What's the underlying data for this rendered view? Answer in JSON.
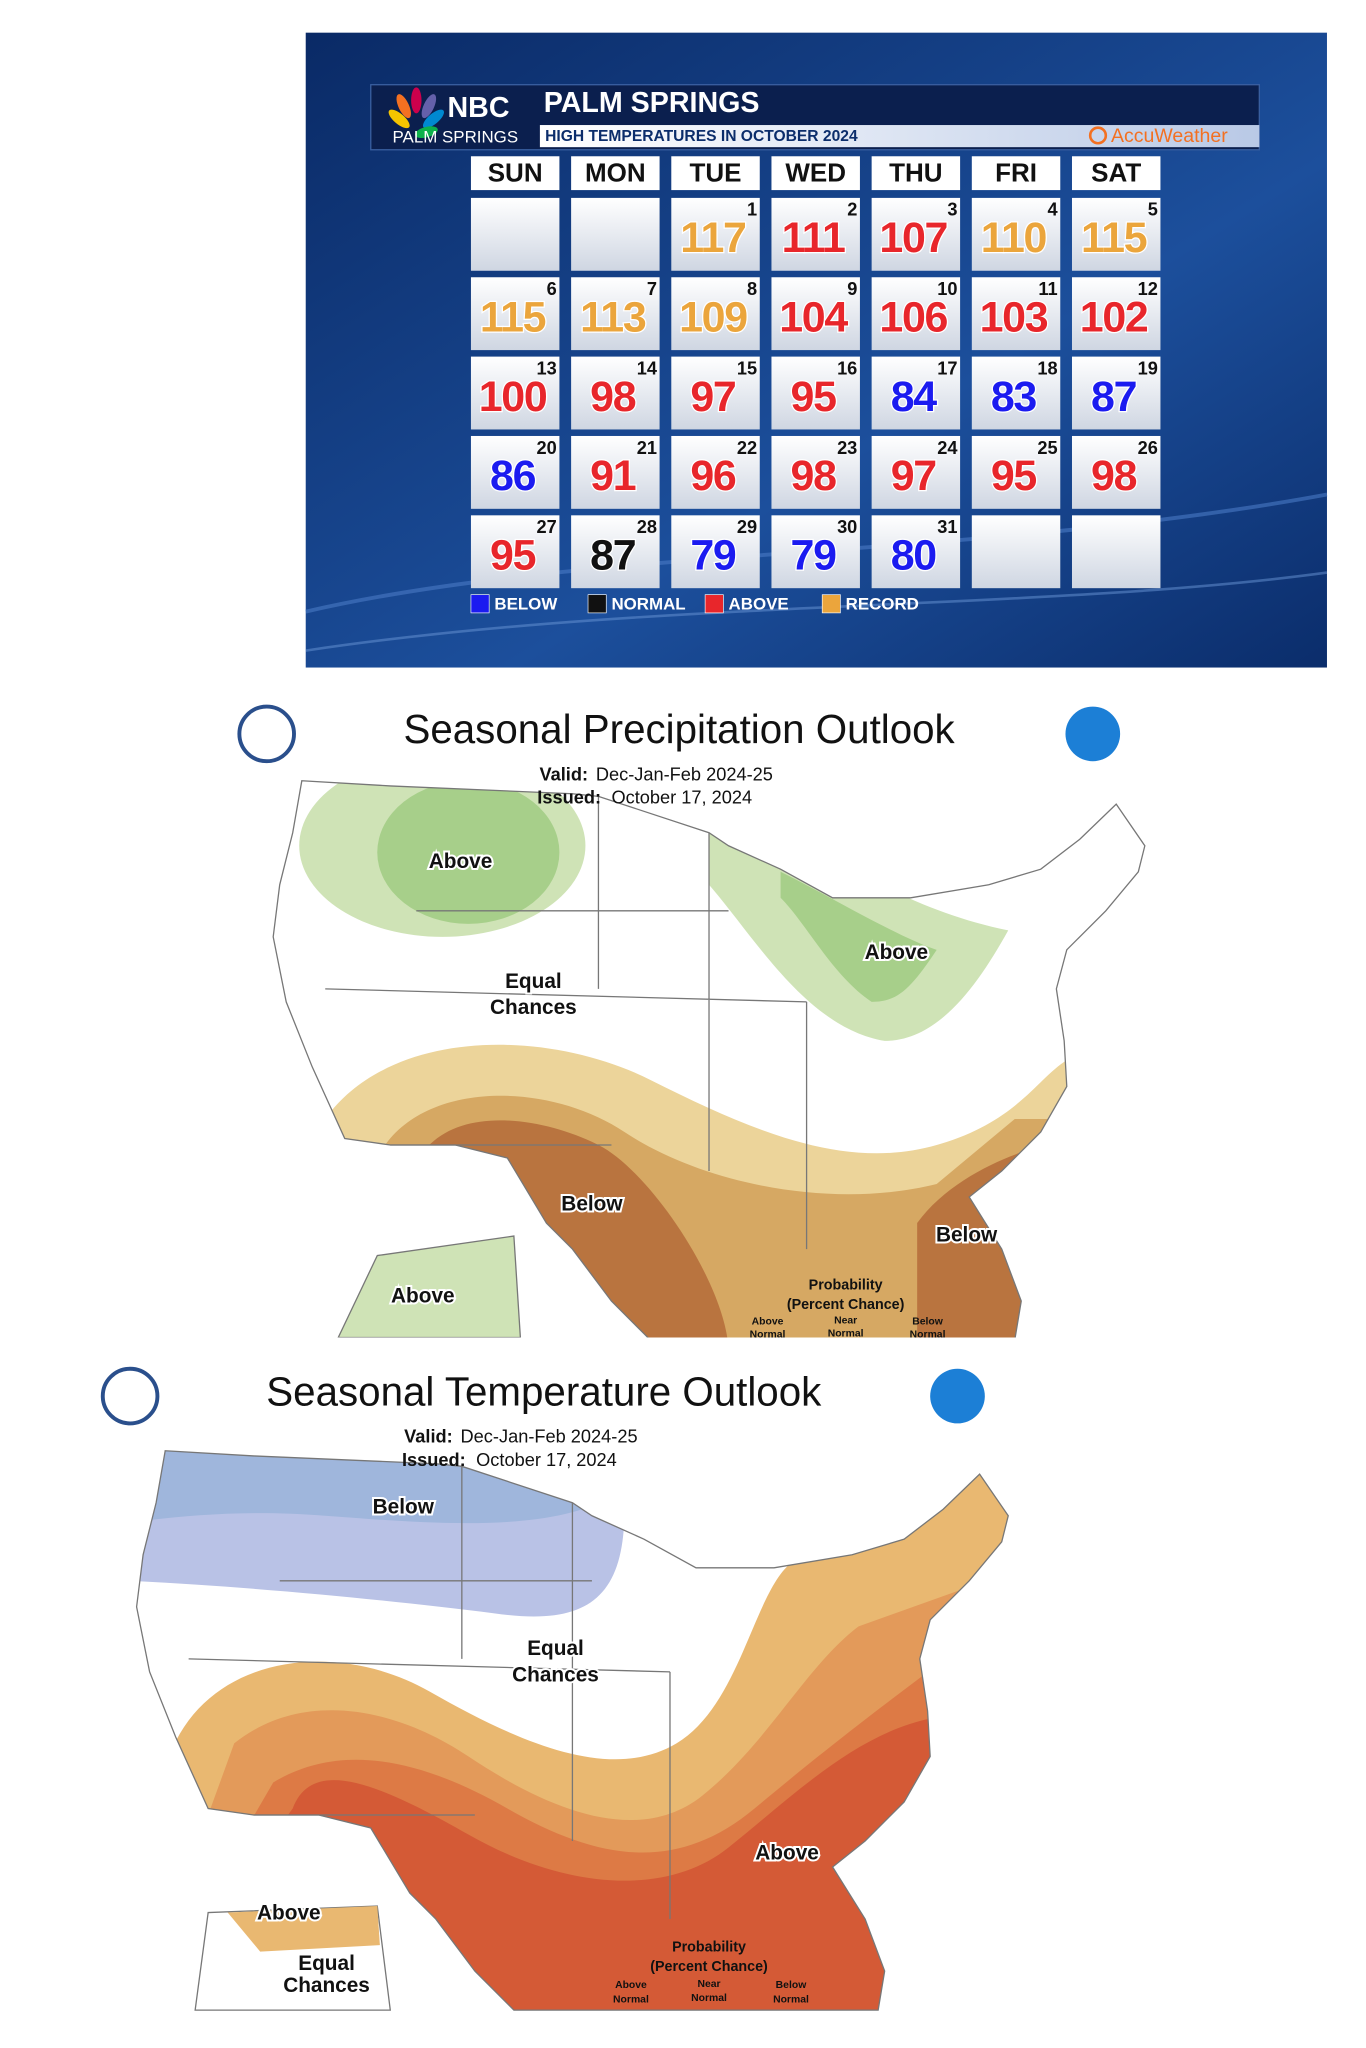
{
  "calendar": {
    "logo": "NBC",
    "station": "PALM SPRINGS",
    "title": "PALM SPRINGS",
    "subtitle": "HIGH TEMPERATURES IN OCTOBER 2024",
    "brand": "AccuWeather",
    "weekdays": [
      "SUN",
      "MON",
      "TUE",
      "WED",
      "THU",
      "FRI",
      "SAT"
    ],
    "days": [
      {
        "day": 1,
        "temp": 117,
        "color": "#eba53c"
      },
      {
        "day": 2,
        "temp": 111,
        "color": "#e8262b"
      },
      {
        "day": 3,
        "temp": 107,
        "color": "#e8262b"
      },
      {
        "day": 4,
        "temp": 110,
        "color": "#eba53c"
      },
      {
        "day": 5,
        "temp": 115,
        "color": "#eba53c"
      },
      {
        "day": 6,
        "temp": 115,
        "color": "#eba53c"
      },
      {
        "day": 7,
        "temp": 113,
        "color": "#eba53c"
      },
      {
        "day": 8,
        "temp": 109,
        "color": "#eba53c"
      },
      {
        "day": 9,
        "temp": 104,
        "color": "#e8262b"
      },
      {
        "day": 10,
        "temp": 106,
        "color": "#e8262b"
      },
      {
        "day": 11,
        "temp": 103,
        "color": "#e8262b"
      },
      {
        "day": 12,
        "temp": 102,
        "color": "#e8262b"
      },
      {
        "day": 13,
        "temp": 100,
        "color": "#e8262b"
      },
      {
        "day": 14,
        "temp": 98,
        "color": "#e8262b"
      },
      {
        "day": 15,
        "temp": 97,
        "color": "#e8262b"
      },
      {
        "day": 16,
        "temp": 95,
        "color": "#e8262b"
      },
      {
        "day": 17,
        "temp": 84,
        "color": "#1b1bf0"
      },
      {
        "day": 18,
        "temp": 83,
        "color": "#1b1bf0"
      },
      {
        "day": 19,
        "temp": 87,
        "color": "#1b1bf0"
      },
      {
        "day": 20,
        "temp": 86,
        "color": "#1b1bf0"
      },
      {
        "day": 21,
        "temp": 91,
        "color": "#e8262b"
      },
      {
        "day": 22,
        "temp": 96,
        "color": "#e8262b"
      },
      {
        "day": 23,
        "temp": 98,
        "color": "#e8262b"
      },
      {
        "day": 24,
        "temp": 97,
        "color": "#e8262b"
      },
      {
        "day": 25,
        "temp": 95,
        "color": "#e8262b"
      },
      {
        "day": 26,
        "temp": 98,
        "color": "#e8262b"
      },
      {
        "day": 27,
        "temp": 95,
        "color": "#e8262b"
      },
      {
        "day": 28,
        "temp": 87,
        "color": "#111111"
      },
      {
        "day": 29,
        "temp": 79,
        "color": "#1b1bf0"
      },
      {
        "day": 30,
        "temp": 79,
        "color": "#1b1bf0"
      },
      {
        "day": 31,
        "temp": 80,
        "color": "#1b1bf0"
      }
    ],
    "legend": [
      {
        "name": "BELOW",
        "color": "#1b1bf0"
      },
      {
        "name": "NORMAL",
        "color": "#111111"
      },
      {
        "name": "ABOVE",
        "color": "#e8262b"
      },
      {
        "name": "RECORD",
        "color": "#eba53c"
      }
    ]
  },
  "precipitation_outlook": {
    "title": "Seasonal Precipitation Outlook",
    "valid_label": "Valid:",
    "valid": "Dec-Jan-Feb 2024-25",
    "issued_label": "Issued:",
    "issued": "October 17, 2024",
    "labels": [
      "Above",
      "Above",
      "Equal",
      "Chances",
      "Below",
      "Below",
      "Above"
    ],
    "probability": {
      "title": "Probability",
      "subtitle": "(Percent Chance)",
      "columns": [
        {
          "top": "Above",
          "bottom": "Normal"
        },
        {
          "top": "Near",
          "bottom": "Normal"
        },
        {
          "top": "Below",
          "bottom": "Normal"
        }
      ]
    }
  },
  "temperature_outlook": {
    "title": "Seasonal Temperature Outlook",
    "valid_label": "Valid:",
    "valid": "Dec-Jan-Feb 2024-25",
    "issued_label": "Issued:",
    "issued": "October 17, 2024",
    "labels": [
      "Below",
      "Equal",
      "Chances",
      "Above",
      "Above",
      "Equal",
      "Chances"
    ],
    "probability": {
      "title": "Probability",
      "subtitle": "(Percent Chance)",
      "columns": [
        {
          "top": "Above",
          "bottom": "Normal"
        },
        {
          "top": "Near",
          "bottom": "Normal"
        },
        {
          "top": "Below",
          "bottom": "Normal"
        }
      ]
    }
  }
}
